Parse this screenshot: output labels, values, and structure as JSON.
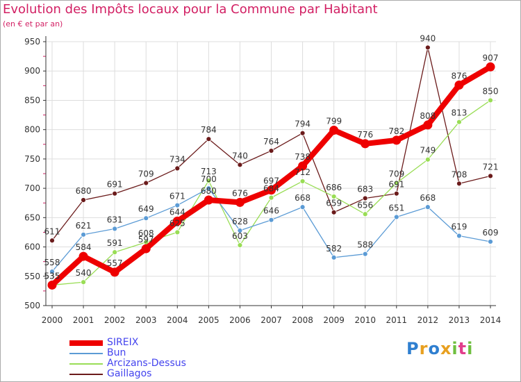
{
  "header": {
    "title": "Evolution des Impôts locaux pour la Commune par Habitant",
    "subtitle": "(en € et par an)"
  },
  "logo": {
    "text": "Proxiti"
  },
  "colors": {
    "title": "#d21f63",
    "axis": "#333333",
    "grid": "#dddddd",
    "legend_text": "#4444ee"
  },
  "chart_data": {
    "type": "line",
    "title": "Evolution des Impôts locaux pour la Commune par Habitant",
    "subtitle": "(en € et par an)",
    "x": [
      "2000",
      "2001",
      "2002",
      "2003",
      "2004",
      "2005",
      "2006",
      "2007",
      "2008",
      "2009",
      "2010",
      "2011",
      "2012",
      "2013",
      "2014"
    ],
    "ylim": [
      500,
      950
    ],
    "yticks": [
      500,
      550,
      600,
      650,
      700,
      750,
      800,
      850,
      900,
      950
    ],
    "grid": true,
    "legend_position": "bottom-left",
    "series": [
      {
        "name": "SIREIX",
        "color": "#ee0000",
        "values": [
          535,
          584,
          557,
          597,
          644,
          680,
          676,
          697,
          738,
          799,
          776,
          782,
          808,
          876,
          907
        ]
      },
      {
        "name": "Bun",
        "color": "#5b9bd5",
        "values": [
          558,
          621,
          631,
          649,
          671,
          700,
          628,
          646,
          668,
          582,
          588,
          651,
          668,
          619,
          609
        ]
      },
      {
        "name": "Arcizans-Dessus",
        "color": "#99dd55",
        "values": [
          535,
          540,
          591,
          608,
          625,
          713,
          603,
          684,
          712,
          686,
          656,
          709,
          749,
          813,
          850
        ]
      },
      {
        "name": "Gaillagos",
        "color": "#6b1b1b",
        "values": [
          611,
          680,
          691,
          709,
          734,
          784,
          740,
          764,
          794,
          659,
          683,
          691,
          940,
          708,
          721
        ]
      }
    ]
  }
}
